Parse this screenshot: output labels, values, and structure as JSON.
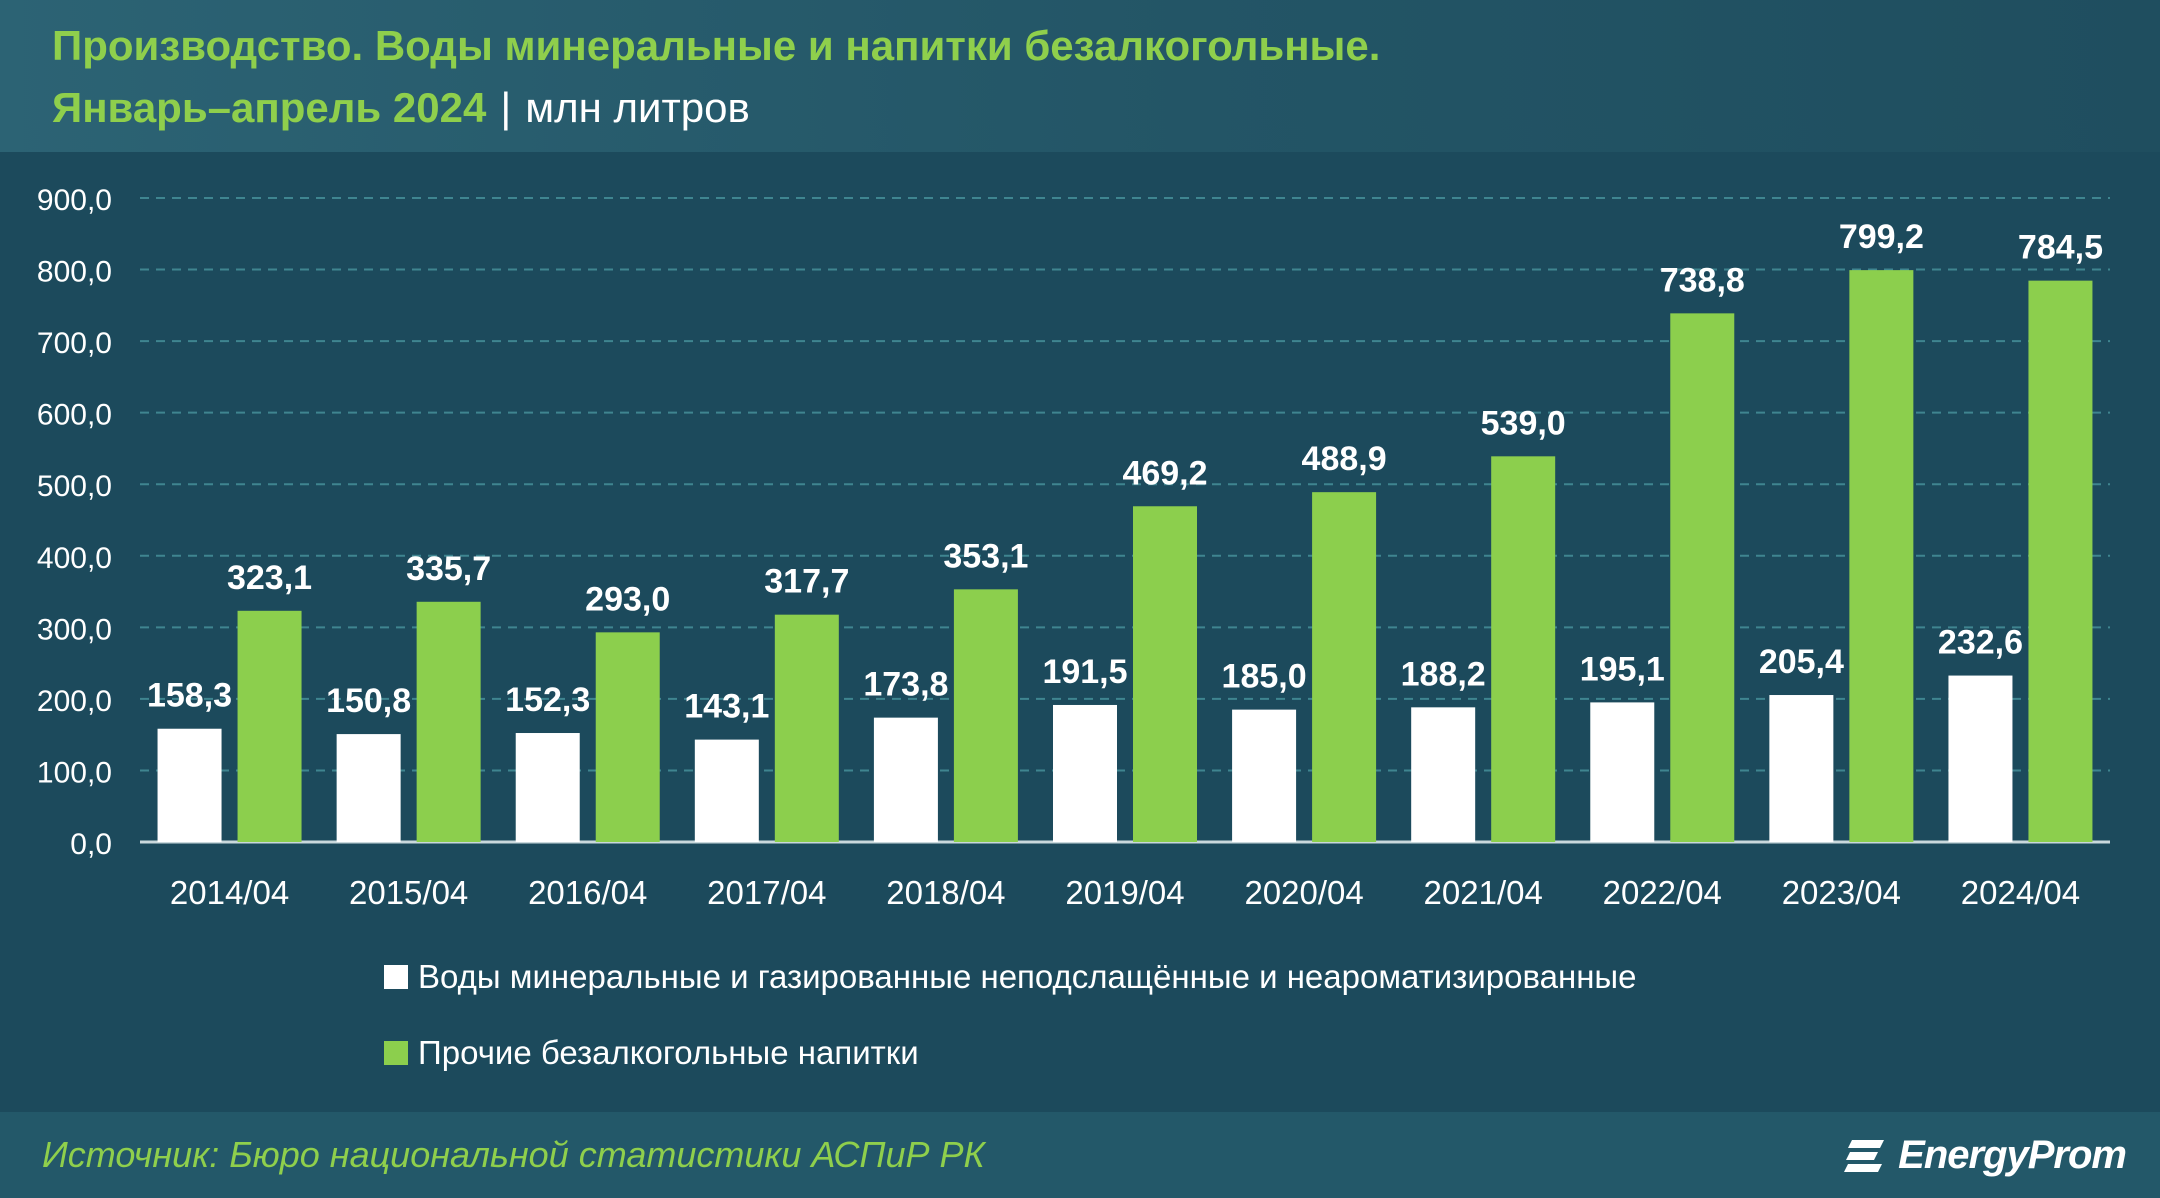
{
  "header": {
    "title": "Производство. Воды минеральные и напитки безалкогольные.",
    "period": "Январь–апрель 2024",
    "separator": "|",
    "unit": "млн литров"
  },
  "footer": {
    "source": "Источник: Бюро национальной статистики АСПиР РК",
    "brand": "EnergyProm",
    "brand_icon": "energyprom-logo-icon"
  },
  "colors": {
    "series_white": "#ffffff",
    "series_green": "#8ccf4d",
    "background": "#1c4a5c",
    "grid": "#3f8590"
  },
  "chart_data": {
    "type": "bar",
    "categories": [
      "2014/04",
      "2015/04",
      "2016/04",
      "2017/04",
      "2018/04",
      "2019/04",
      "2020/04",
      "2021/04",
      "2022/04",
      "2023/04",
      "2024/04"
    ],
    "series": [
      {
        "name": "Воды минеральные и газированные неподслащённые и неароматизированные",
        "color": "#ffffff",
        "values": [
          158.3,
          150.8,
          152.3,
          143.1,
          173.8,
          191.5,
          185.0,
          188.2,
          195.1,
          205.4,
          232.6
        ],
        "labels": [
          "158,3",
          "150,8",
          "152,3",
          "143,1",
          "173,8",
          "191,5",
          "185,0",
          "188,2",
          "195,1",
          "205,4",
          "232,6"
        ]
      },
      {
        "name": "Прочие безалкогольные напитки",
        "color": "#8ccf4d",
        "values": [
          323.1,
          335.7,
          293.0,
          317.7,
          353.1,
          469.2,
          488.9,
          539.0,
          738.8,
          799.2,
          784.5
        ],
        "labels": [
          "323,1",
          "335,7",
          "293,0",
          "317,7",
          "353,1",
          "469,2",
          "488,9",
          "539,0",
          "738,8",
          "799,2",
          "784,5"
        ]
      }
    ],
    "ylim": [
      0,
      900
    ],
    "yticks": [
      "0,0",
      "100,0",
      "200,0",
      "300,0",
      "400,0",
      "500,0",
      "600,0",
      "700,0",
      "800,0",
      "900,0"
    ],
    "grid": true,
    "legend_position": "bottom"
  }
}
